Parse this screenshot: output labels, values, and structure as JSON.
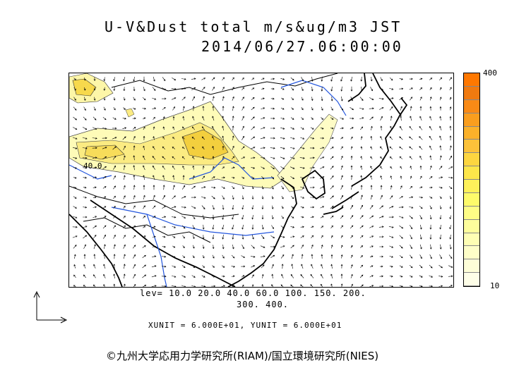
{
  "title": {
    "line1": "U-V&Dust total m/s&ug/m3 JST",
    "line2": "2014/06/27.06:00:00"
  },
  "contour_label": "40.0",
  "colorbar": {
    "max_label": "400",
    "min_label": "10",
    "colors": [
      "#ff7800",
      "#f07a10",
      "#f98a16",
      "#fa9e1e",
      "#fbb12a",
      "#fcc23a",
      "#fdd640",
      "#fde64a",
      "#fef15a",
      "#fefb6a",
      "#fefd86",
      "#fefe9c",
      "#fefeb4",
      "#fefec8",
      "#fefed8",
      "#fefee8"
    ]
  },
  "levels": {
    "line1": "lev= 10.0 20.0 40.0 60.0 100. 150. 200.",
    "line2": "300. 400."
  },
  "units": "XUNIT = 6.000E+01, YUNIT = 6.000E+01",
  "copyright": "©九州大学応用力学研究所(RIAM)/国立環境研究所(NIES)"
}
